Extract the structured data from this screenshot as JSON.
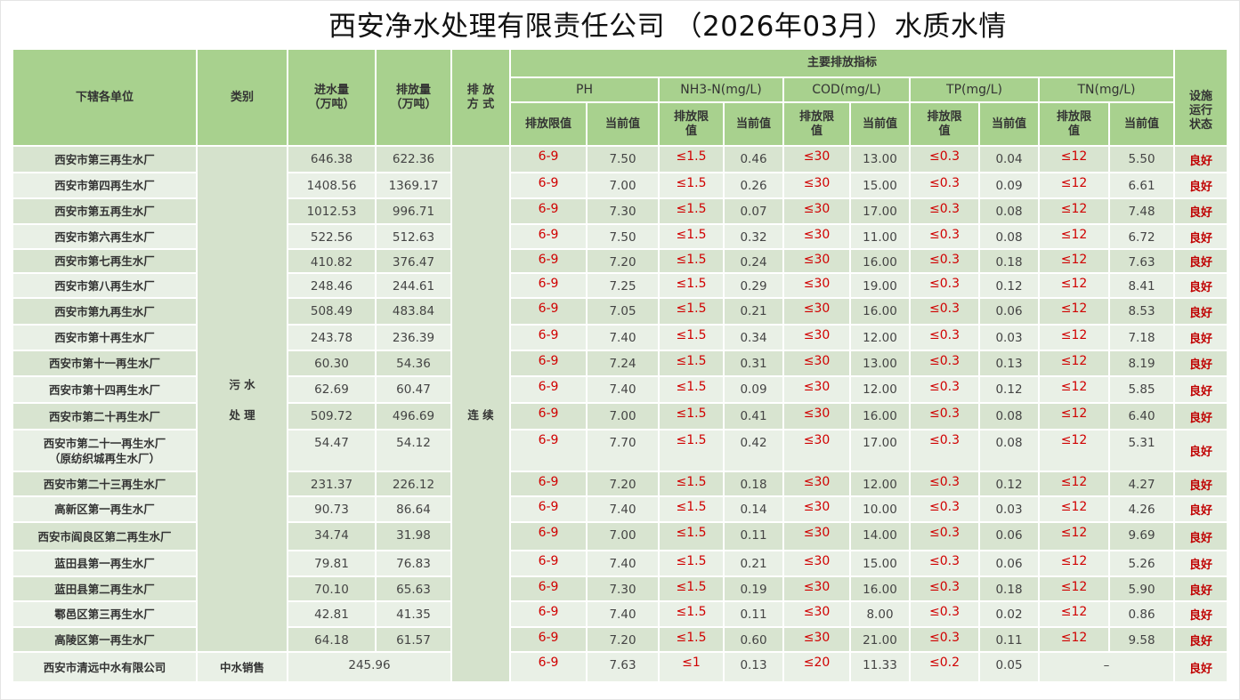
{
  "title": "西安净水处理有限责任公司 （2026年03月）水质水情",
  "header": {
    "unit": "下辖各单位",
    "category": "类别",
    "inflow": "进水量\n（万吨）",
    "outflow": "排放量\n（万吨）",
    "method": "排 放\n方 式",
    "main_indicators": "主要排放指标",
    "status": "设施\n运行\n状态",
    "groups": [
      "PH",
      "NH3-N(mg/L)",
      "COD(mg/L)",
      "TP(mg/L)",
      "TN(mg/L)"
    ],
    "limit_label": "排放限值",
    "limit_label_wrapped": "排放限\n值",
    "current_label": "当前值"
  },
  "category_sewage": "污 水\n\n处 理",
  "method_value": "连 续",
  "colors": {
    "header": "#a8d18e",
    "row_dark": "#d8e4d0",
    "row_light": "#e9f0e6",
    "limit_red": "#d00000"
  },
  "rows": [
    {
      "name": "西安市第三再生水厂",
      "in": "646.38",
      "out": "622.36",
      "ph_lim": "6-9",
      "ph": "7.50",
      "nh_lim": "≤1.5",
      "nh": "0.46",
      "cod_lim": "≤30",
      "cod": "13.00",
      "tp_lim": "≤0.3",
      "tp": "0.04",
      "tn_lim": "≤12",
      "tn": "5.50",
      "status": "良好"
    },
    {
      "name": "西安市第四再生水厂",
      "in": "1408.56",
      "out": "1369.17",
      "ph_lim": "6-9",
      "ph": "7.00",
      "nh_lim": "≤1.5",
      "nh": "0.26",
      "cod_lim": "≤30",
      "cod": "15.00",
      "tp_lim": "≤0.3",
      "tp": "0.09",
      "tn_lim": "≤12",
      "tn": "6.61",
      "status": "良好"
    },
    {
      "name": "西安市第五再生水厂",
      "in": "1012.53",
      "out": "996.71",
      "ph_lim": "6-9",
      "ph": "7.30",
      "nh_lim": "≤1.5",
      "nh": "0.07",
      "cod_lim": "≤30",
      "cod": "17.00",
      "tp_lim": "≤0.3",
      "tp": "0.08",
      "tn_lim": "≤12",
      "tn": "7.48",
      "status": "良好"
    },
    {
      "name": "西安市第六再生水厂",
      "in": "522.56",
      "out": "512.63",
      "ph_lim": "6-9",
      "ph": "7.50",
      "nh_lim": "≤1.5",
      "nh": "0.32",
      "cod_lim": "≤30",
      "cod": "11.00",
      "tp_lim": "≤0.3",
      "tp": "0.08",
      "tn_lim": "≤12",
      "tn": "6.72",
      "status": "良好"
    },
    {
      "name": "西安市第七再生水厂",
      "in": "410.82",
      "out": "376.47",
      "ph_lim": "6-9",
      "ph": "7.20",
      "nh_lim": "≤1.5",
      "nh": "0.24",
      "cod_lim": "≤30",
      "cod": "16.00",
      "tp_lim": "≤0.3",
      "tp": "0.18",
      "tn_lim": "≤12",
      "tn": "7.63",
      "status": "良好"
    },
    {
      "name": "西安市第八再生水厂",
      "in": "248.46",
      "out": "244.61",
      "ph_lim": "6-9",
      "ph": "7.25",
      "nh_lim": "≤1.5",
      "nh": "0.29",
      "cod_lim": "≤30",
      "cod": "19.00",
      "tp_lim": "≤0.3",
      "tp": "0.12",
      "tn_lim": "≤12",
      "tn": "8.41",
      "status": "良好"
    },
    {
      "name": "西安市第九再生水厂",
      "in": "508.49",
      "out": "483.84",
      "ph_lim": "6-9",
      "ph": "7.05",
      "nh_lim": "≤1.5",
      "nh": "0.21",
      "cod_lim": "≤30",
      "cod": "16.00",
      "tp_lim": "≤0.3",
      "tp": "0.06",
      "tn_lim": "≤12",
      "tn": "8.53",
      "status": "良好"
    },
    {
      "name": "西安市第十再生水厂",
      "in": "243.78",
      "out": "236.39",
      "ph_lim": "6-9",
      "ph": "7.40",
      "nh_lim": "≤1.5",
      "nh": "0.34",
      "cod_lim": "≤30",
      "cod": "12.00",
      "tp_lim": "≤0.3",
      "tp": "0.03",
      "tn_lim": "≤12",
      "tn": "7.18",
      "status": "良好"
    },
    {
      "name": "西安市第十一再生水厂",
      "in": "60.30",
      "out": "54.36",
      "ph_lim": "6-9",
      "ph": "7.24",
      "nh_lim": "≤1.5",
      "nh": "0.31",
      "cod_lim": "≤30",
      "cod": "13.00",
      "tp_lim": "≤0.3",
      "tp": "0.13",
      "tn_lim": "≤12",
      "tn": "8.19",
      "status": "良好"
    },
    {
      "name": "西安市第十四再生水厂",
      "in": "62.69",
      "out": "60.47",
      "ph_lim": "6-9",
      "ph": "7.40",
      "nh_lim": "≤1.5",
      "nh": "0.09",
      "cod_lim": "≤30",
      "cod": "12.00",
      "tp_lim": "≤0.3",
      "tp": "0.12",
      "tn_lim": "≤12",
      "tn": "5.85",
      "status": "良好"
    },
    {
      "name": "西安市第二十再生水厂",
      "in": "509.72",
      "out": "496.69",
      "ph_lim": "6-9",
      "ph": "7.00",
      "nh_lim": "≤1.5",
      "nh": "0.41",
      "cod_lim": "≤30",
      "cod": "16.00",
      "tp_lim": "≤0.3",
      "tp": "0.08",
      "tn_lim": "≤12",
      "tn": "6.40",
      "status": "良好"
    },
    {
      "name": "西安市第二十一再生水厂\n（原纺织城再生水厂）",
      "in": "54.47",
      "out": "54.12",
      "ph_lim": "6-9",
      "ph": "7.70",
      "nh_lim": "≤1.5",
      "nh": "0.42",
      "cod_lim": "≤30",
      "cod": "17.00",
      "tp_lim": "≤0.3",
      "tp": "0.08",
      "tn_lim": "≤12",
      "tn": "5.31",
      "status": "良好"
    },
    {
      "name": "西安市第二十三再生水厂",
      "in": "231.37",
      "out": "226.12",
      "ph_lim": "6-9",
      "ph": "7.20",
      "nh_lim": "≤1.5",
      "nh": "0.18",
      "cod_lim": "≤30",
      "cod": "12.00",
      "tp_lim": "≤0.3",
      "tp": "0.12",
      "tn_lim": "≤12",
      "tn": "4.27",
      "status": "良好"
    },
    {
      "name": "高新区第一再生水厂",
      "in": "90.73",
      "out": "86.64",
      "ph_lim": "6-9",
      "ph": "7.40",
      "nh_lim": "≤1.5",
      "nh": "0.14",
      "cod_lim": "≤30",
      "cod": "10.00",
      "tp_lim": "≤0.3",
      "tp": "0.03",
      "tn_lim": "≤12",
      "tn": "4.26",
      "status": "良好"
    },
    {
      "name": "西安市阎良区第二再生水厂",
      "in": "34.74",
      "out": "31.98",
      "ph_lim": "6-9",
      "ph": "7.00",
      "nh_lim": "≤1.5",
      "nh": "0.11",
      "cod_lim": "≤30",
      "cod": "14.00",
      "tp_lim": "≤0.3",
      "tp": "0.06",
      "tn_lim": "≤12",
      "tn": "9.69",
      "status": "良好"
    },
    {
      "name": "蓝田县第一再生水厂",
      "in": "79.81",
      "out": "76.83",
      "ph_lim": "6-9",
      "ph": "7.40",
      "nh_lim": "≤1.5",
      "nh": "0.21",
      "cod_lim": "≤30",
      "cod": "15.00",
      "tp_lim": "≤0.3",
      "tp": "0.06",
      "tn_lim": "≤12",
      "tn": "5.26",
      "status": "良好"
    },
    {
      "name": "蓝田县第二再生水厂",
      "in": "70.10",
      "out": "65.63",
      "ph_lim": "6-9",
      "ph": "7.30",
      "nh_lim": "≤1.5",
      "nh": "0.19",
      "cod_lim": "≤30",
      "cod": "16.00",
      "tp_lim": "≤0.3",
      "tp": "0.18",
      "tn_lim": "≤12",
      "tn": "5.90",
      "status": "良好"
    },
    {
      "name": "鄠邑区第三再生水厂",
      "in": "42.81",
      "out": "41.35",
      "ph_lim": "6-9",
      "ph": "7.40",
      "nh_lim": "≤1.5",
      "nh": "0.11",
      "cod_lim": "≤30",
      "cod": "8.00",
      "tp_lim": "≤0.3",
      "tp": "0.02",
      "tn_lim": "≤12",
      "tn": "0.86",
      "status": "良好"
    },
    {
      "name": "高陵区第一再生水厂",
      "in": "64.18",
      "out": "61.57",
      "ph_lim": "6-9",
      "ph": "7.20",
      "nh_lim": "≤1.5",
      "nh": "0.60",
      "cod_lim": "≤30",
      "cod": "21.00",
      "tp_lim": "≤0.3",
      "tp": "0.11",
      "tn_lim": "≤12",
      "tn": "9.58",
      "status": "良好"
    }
  ],
  "last_row": {
    "name": "西安市清远中水有限公司",
    "category": "中水销售",
    "volume": "245.96",
    "ph_lim": "6-9",
    "ph": "7.63",
    "nh_lim": "≤1",
    "nh": "0.13",
    "cod_lim": "≤20",
    "cod": "11.33",
    "tp_lim": "≤0.2",
    "tp": "0.05",
    "tn": "–",
    "status": "良好"
  }
}
